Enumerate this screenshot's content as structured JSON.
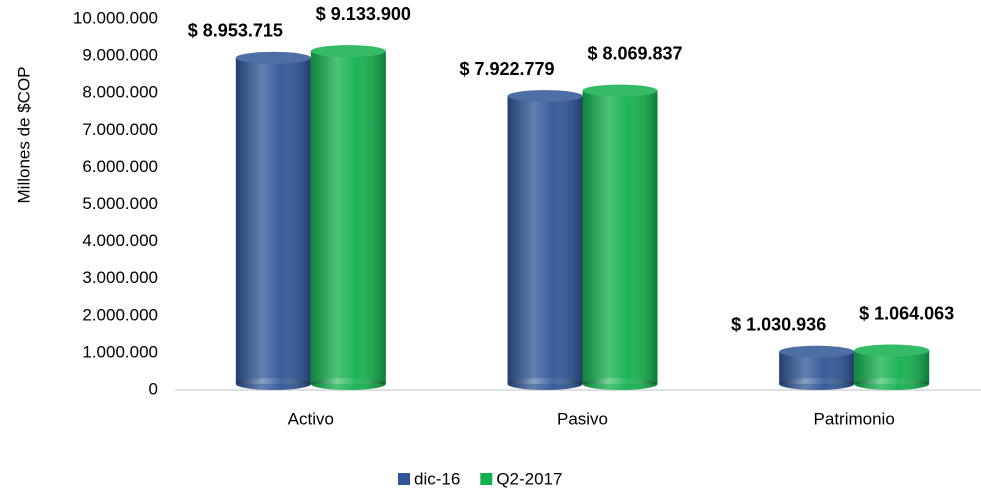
{
  "chart_data": {
    "type": "bar",
    "y_label": "Millones de $COP",
    "categories": [
      "Activo",
      "Pasivo",
      "Patrimonio"
    ],
    "series": [
      {
        "name": "dic-16",
        "color": "#2f5597",
        "values": [
          8953715,
          7922779,
          1030936
        ],
        "value_labels": [
          "$ 8.953.715",
          "$ 7.922.779",
          "$ 1.030.936"
        ]
      },
      {
        "name": "Q2-2017",
        "color": "#12b04e",
        "values": [
          9133900,
          8069837,
          1064063
        ],
        "value_labels": [
          "$ 9.133.900",
          "$ 8.069.837",
          "$ 1.064.063"
        ]
      }
    ],
    "ylim": [
      0,
      10000000
    ],
    "yticks": [
      {
        "value": 0,
        "label": "0"
      },
      {
        "value": 1000000,
        "label": "1.000.000"
      },
      {
        "value": 2000000,
        "label": "2.000.000"
      },
      {
        "value": 3000000,
        "label": "3.000.000"
      },
      {
        "value": 4000000,
        "label": "4.000.000"
      },
      {
        "value": 5000000,
        "label": "5.000.000"
      },
      {
        "value": 6000000,
        "label": "6.000.000"
      },
      {
        "value": 7000000,
        "label": "7.000.000"
      },
      {
        "value": 8000000,
        "label": "8.000.000"
      },
      {
        "value": 9000000,
        "label": "9.000.000"
      },
      {
        "value": 10000000,
        "label": "10.000.000"
      }
    ],
    "grid": false,
    "legend": "bottom"
  }
}
